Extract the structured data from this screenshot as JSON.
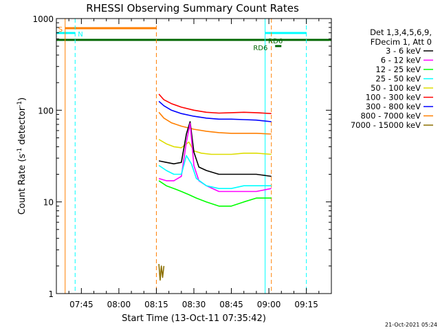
{
  "chart_data": {
    "type": "line",
    "title": "RHESSI Observing Summary Count Rates",
    "xlabel": "Start Time (13-Oct-11 07:35:42)",
    "ylabel_main": "Count Rate (s",
    "ylabel_sup1": "-1",
    "ylabel_mid": " detector",
    "ylabel_sup2": "-1",
    "ylabel_end": ")",
    "y_scale": "log",
    "ylim": [
      1,
      1000
    ],
    "xlim_minutes": [
      -10,
      100
    ],
    "x_ticks": [
      {
        "label": "07:45",
        "m": 0
      },
      {
        "label": "08:00",
        "m": 15
      },
      {
        "label": "08:15",
        "m": 30
      },
      {
        "label": "08:30",
        "m": 45
      },
      {
        "label": "08:45",
        "m": 60
      },
      {
        "label": "09:00",
        "m": 75
      },
      {
        "label": "09:15",
        "m": 90
      }
    ],
    "y_ticks": [
      {
        "label": "1",
        "v": 1
      },
      {
        "label": "10",
        "v": 10
      },
      {
        "label": "100",
        "v": 100
      },
      {
        "label": "1000",
        "v": 1000
      }
    ],
    "grid": false,
    "legend": {
      "placement": "right",
      "header1": "Det 1,3,4,5,6,9,",
      "header2": "FDecim 1, Att 0",
      "entries": [
        {
          "label": "3 - 6 keV",
          "color": "#000000"
        },
        {
          "label": "6 - 12 keV",
          "color": "#ff00ff"
        },
        {
          "label": "12 - 25 keV",
          "color": "#00ff00"
        },
        {
          "label": "25 - 50 keV",
          "color": "#00ffff"
        },
        {
          "label": "50 - 100 keV",
          "color": "#dddd00"
        },
        {
          "label": "100 - 300 keV",
          "color": "#ff0000"
        },
        {
          "label": "300 - 800 keV",
          "color": "#0000ff"
        },
        {
          "label": "800 - 7000 keV",
          "color": "#ff7f00"
        },
        {
          "label": "7000 - 15000 keV",
          "color": "#8b6f00"
        }
      ]
    },
    "data_window_minutes": [
      31,
      76
    ],
    "series": [
      {
        "color": "#ff0000",
        "x": [
          31,
          33,
          36,
          40,
          45,
          50,
          55,
          60,
          65,
          70,
          76
        ],
        "y": [
          150,
          130,
          118,
          108,
          100,
          95,
          93,
          94,
          95,
          94,
          92
        ]
      },
      {
        "color": "#0000ff",
        "x": [
          31,
          33,
          36,
          40,
          45,
          50,
          55,
          60,
          65,
          70,
          76
        ],
        "y": [
          125,
          112,
          100,
          92,
          86,
          82,
          80,
          80,
          79,
          78,
          75
        ]
      },
      {
        "color": "#ff7f00",
        "x": [
          31,
          33,
          36,
          40,
          45,
          50,
          55,
          60,
          65,
          70,
          76
        ],
        "y": [
          95,
          82,
          73,
          67,
          62,
          59,
          57,
          56,
          56,
          56,
          55
        ]
      },
      {
        "color": "#dddd00",
        "x": [
          31,
          34,
          37,
          40,
          43,
          45,
          48,
          52,
          56,
          60,
          65,
          70,
          76
        ],
        "y": [
          48,
          43,
          40,
          39,
          45,
          36,
          34,
          33,
          33,
          33,
          34,
          34,
          33
        ]
      },
      {
        "color": "#000000",
        "x": [
          31,
          34,
          37,
          40,
          42,
          43.5,
          45,
          47,
          50,
          55,
          60,
          65,
          70,
          76
        ],
        "y": [
          28,
          27,
          26,
          27,
          55,
          75,
          35,
          24,
          22,
          20,
          20,
          20,
          20,
          19
        ]
      },
      {
        "color": "#ff00ff",
        "x": [
          31,
          34,
          37,
          40,
          42,
          43.5,
          45,
          47,
          50,
          55,
          60,
          65,
          70,
          76
        ],
        "y": [
          18,
          17,
          17,
          19,
          45,
          72,
          25,
          17,
          15,
          13,
          13,
          13,
          13,
          14
        ]
      },
      {
        "color": "#00ffff",
        "x": [
          31,
          34,
          37,
          40,
          42,
          44,
          46,
          50,
          55,
          60,
          65,
          70,
          76
        ],
        "y": [
          25,
          22,
          20,
          20,
          32,
          26,
          18,
          15,
          14,
          14,
          15,
          15,
          15
        ]
      },
      {
        "color": "#00ff00",
        "x": [
          31,
          34,
          37,
          40,
          43,
          46,
          50,
          55,
          60,
          65,
          70,
          76
        ],
        "y": [
          17,
          15,
          14,
          13,
          12,
          11,
          10,
          9,
          9,
          10,
          11,
          11
        ]
      },
      {
        "color": "#8b6f00",
        "x": [
          31,
          31.5,
          32,
          32.5,
          33
        ],
        "y": [
          2.1,
          1.4,
          2.0,
          1.5,
          2.0
        ]
      }
    ],
    "annotations": [
      {
        "label": "S",
        "color": "#ff7f00",
        "m": -6.5
      },
      {
        "label": "N",
        "color": "#00ffff",
        "m": -2.5
      },
      {
        "label": "RD6",
        "color": "#006600",
        "m": 71.5
      },
      {
        "label": "RD6",
        "color": "#006600",
        "m": 77.5
      }
    ],
    "footer_date": "21-Oct-2021 05:24"
  }
}
